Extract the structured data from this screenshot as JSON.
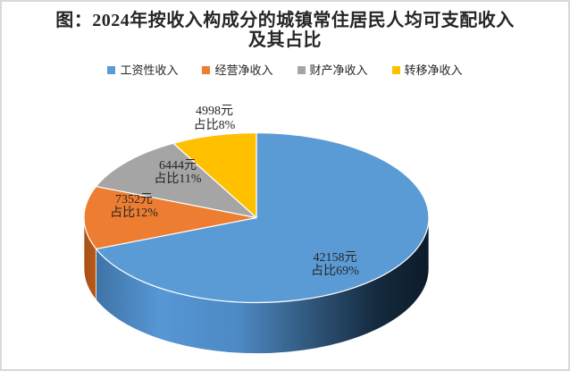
{
  "title": {
    "line1": "图：2024年按收入构成分的城镇常住居民人均可支配收入",
    "line2": "及其占比"
  },
  "chart_data": {
    "type": "pie",
    "style": "3d-pie",
    "title": "图：2024年按收入构成分的城镇常住居民人均可支配收入及其占比",
    "unit": "元",
    "start_angle_deg": 0,
    "direction": "clockwise",
    "legend_position": "top",
    "slices": [
      {
        "key": "wage-income",
        "label": "工资性收入",
        "value_yuan": 42158,
        "percent": 69,
        "color": "#5B9BD5",
        "label_line1": "42158元",
        "label_line2": "占比69%"
      },
      {
        "key": "business-income",
        "label": "经营净收入",
        "value_yuan": 7352,
        "percent": 12,
        "color": "#ED7D31",
        "label_line1": "7352元",
        "label_line2": "占比12%"
      },
      {
        "key": "property-income",
        "label": "财产净收入",
        "value_yuan": 6444,
        "percent": 11,
        "color": "#A5A5A5",
        "label_line1": "6444元",
        "label_line2": "占比11%"
      },
      {
        "key": "transfer-income",
        "label": "转移净收入",
        "value_yuan": 4998,
        "percent": 8,
        "color": "#FFC000",
        "label_line1": "4998元",
        "label_line2": "占比8%"
      }
    ],
    "colors": {
      "text": "#262626",
      "frame_border": "#d9d9d9",
      "slice_stroke": "#ffffff"
    }
  }
}
